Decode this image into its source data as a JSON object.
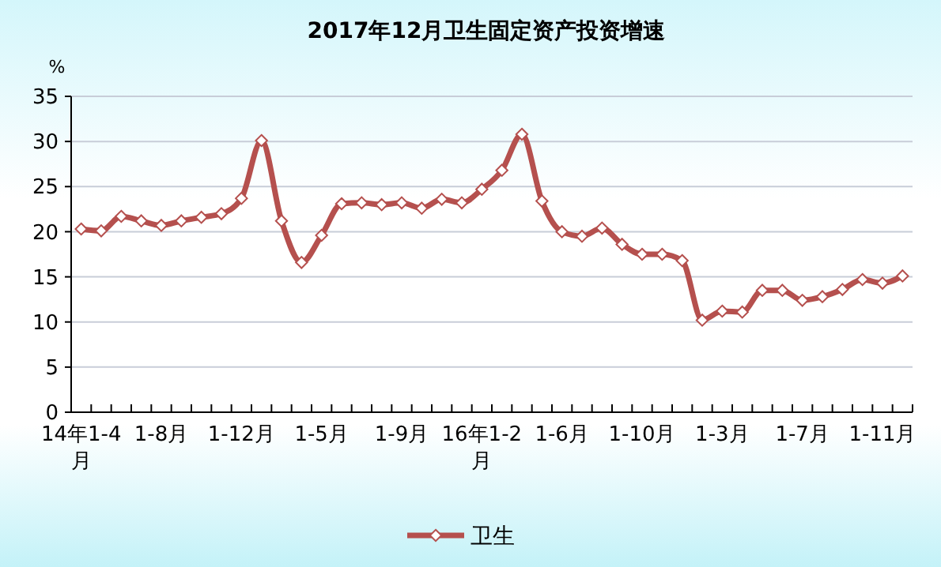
{
  "chart_data": {
    "type": "line",
    "title": "2017年12月卫生固定资产投资增速",
    "ylabel": "%",
    "categories": [
      "14年1-4月",
      null,
      null,
      null,
      "1-8月",
      null,
      null,
      null,
      "1-12月",
      null,
      null,
      null,
      "1-5月",
      null,
      null,
      null,
      "1-9月",
      null,
      null,
      null,
      "16年1-2月",
      null,
      null,
      null,
      "1-6月",
      null,
      null,
      null,
      "1-10月",
      null,
      null,
      null,
      "1-3月",
      null,
      null,
      null,
      "1-7月",
      null,
      null,
      null,
      "1-11月",
      null
    ],
    "series": [
      {
        "name": "卫生",
        "color": "#b5504e",
        "values": [
          20.3,
          20.1,
          21.7,
          21.2,
          20.7,
          21.2,
          21.6,
          22.0,
          23.7,
          30.1,
          21.2,
          16.6,
          19.6,
          23.1,
          23.2,
          23.0,
          23.2,
          22.6,
          23.6,
          23.2,
          24.7,
          26.8,
          30.8,
          23.4,
          20.0,
          19.5,
          20.4,
          18.6,
          17.5,
          17.5,
          16.8,
          10.2,
          11.2,
          11.1,
          13.5,
          13.5,
          12.4,
          12.8,
          13.6,
          14.7,
          14.3,
          15.1
        ]
      }
    ],
    "ylim": [
      0,
      35
    ],
    "yticks": [
      0,
      5,
      10,
      15,
      20,
      25,
      30,
      35
    ],
    "grid": "y",
    "legend": "bottom",
    "marker": "diamond",
    "line_style": "solid"
  }
}
